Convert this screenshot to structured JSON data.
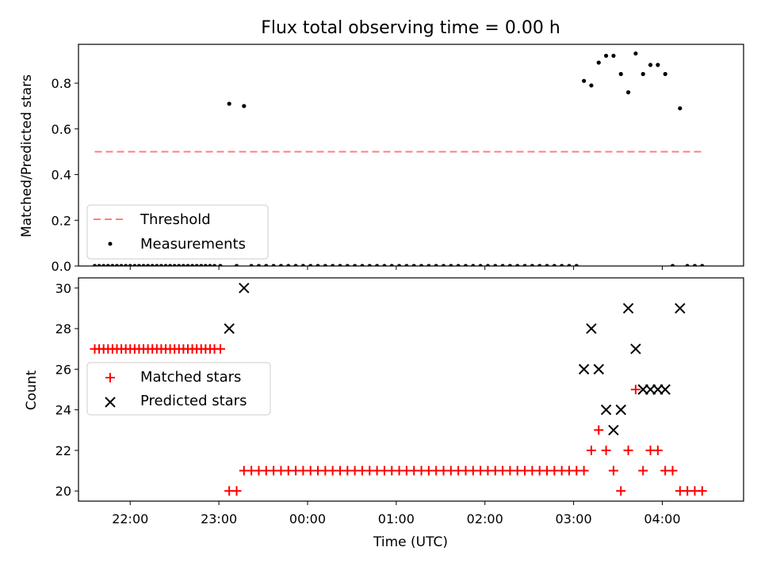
{
  "chart_data": [
    {
      "type": "scatter",
      "title": "Flux total observing time = 0.00 h",
      "ylabel": "Matched/Predicted stars",
      "xlabel": "",
      "xlim": [
        "21:25",
        "04:55"
      ],
      "ylim": [
        0,
        0.97
      ],
      "yticks": [
        0.0,
        0.2,
        0.4,
        0.6,
        0.8
      ],
      "ytick_labels": [
        "0.0",
        "0.2",
        "0.4",
        "0.6",
        "0.8"
      ],
      "xticks": [
        "22:00",
        "23:00",
        "00:00",
        "01:00",
        "02:00",
        "03:00",
        "04:00"
      ],
      "show_xtick_labels": false,
      "grid": false,
      "legend_position": "lower-left",
      "threshold": {
        "name": "Threshold",
        "value": 0.5,
        "x_range": [
          "21:36",
          "04:27"
        ],
        "color": "#ff7f7f",
        "style": "dashed"
      },
      "series": [
        {
          "name": "Measurements",
          "marker": "dot",
          "color": "#000000",
          "points": [
            {
              "x": "21:36",
              "y": 0
            },
            {
              "x": "21:39",
              "y": 0
            },
            {
              "x": "21:42",
              "y": 0
            },
            {
              "x": "21:45",
              "y": 0
            },
            {
              "x": "21:48",
              "y": 0
            },
            {
              "x": "21:51",
              "y": 0
            },
            {
              "x": "21:54",
              "y": 0
            },
            {
              "x": "21:57",
              "y": 0
            },
            {
              "x": "22:00",
              "y": 0
            },
            {
              "x": "22:03",
              "y": 0
            },
            {
              "x": "22:06",
              "y": 0
            },
            {
              "x": "22:09",
              "y": 0
            },
            {
              "x": "22:12",
              "y": 0
            },
            {
              "x": "22:15",
              "y": 0
            },
            {
              "x": "22:18",
              "y": 0
            },
            {
              "x": "22:21",
              "y": 0
            },
            {
              "x": "22:24",
              "y": 0
            },
            {
              "x": "22:27",
              "y": 0
            },
            {
              "x": "22:30",
              "y": 0
            },
            {
              "x": "22:33",
              "y": 0
            },
            {
              "x": "22:36",
              "y": 0
            },
            {
              "x": "22:39",
              "y": 0
            },
            {
              "x": "22:42",
              "y": 0
            },
            {
              "x": "22:45",
              "y": 0
            },
            {
              "x": "22:48",
              "y": 0
            },
            {
              "x": "22:51",
              "y": 0
            },
            {
              "x": "22:54",
              "y": 0
            },
            {
              "x": "22:57",
              "y": 0
            },
            {
              "x": "23:01",
              "y": 0
            },
            {
              "x": "23:07",
              "y": 0.71
            },
            {
              "x": "23:12",
              "y": 0
            },
            {
              "x": "23:17",
              "y": 0.7
            },
            {
              "x": "23:22",
              "y": 0
            },
            {
              "x": "23:27",
              "y": 0
            },
            {
              "x": "23:32",
              "y": 0
            },
            {
              "x": "23:37",
              "y": 0
            },
            {
              "x": "23:42",
              "y": 0
            },
            {
              "x": "23:47",
              "y": 0
            },
            {
              "x": "23:52",
              "y": 0
            },
            {
              "x": "23:57",
              "y": 0
            },
            {
              "x": "00:02",
              "y": 0
            },
            {
              "x": "00:07",
              "y": 0
            },
            {
              "x": "00:12",
              "y": 0
            },
            {
              "x": "00:17",
              "y": 0
            },
            {
              "x": "00:22",
              "y": 0
            },
            {
              "x": "00:27",
              "y": 0
            },
            {
              "x": "00:32",
              "y": 0
            },
            {
              "x": "00:37",
              "y": 0
            },
            {
              "x": "00:42",
              "y": 0
            },
            {
              "x": "00:47",
              "y": 0
            },
            {
              "x": "00:52",
              "y": 0
            },
            {
              "x": "00:57",
              "y": 0
            },
            {
              "x": "01:02",
              "y": 0
            },
            {
              "x": "01:07",
              "y": 0
            },
            {
              "x": "01:12",
              "y": 0
            },
            {
              "x": "01:17",
              "y": 0
            },
            {
              "x": "01:22",
              "y": 0
            },
            {
              "x": "01:27",
              "y": 0
            },
            {
              "x": "01:32",
              "y": 0
            },
            {
              "x": "01:37",
              "y": 0
            },
            {
              "x": "01:42",
              "y": 0
            },
            {
              "x": "01:47",
              "y": 0
            },
            {
              "x": "01:52",
              "y": 0
            },
            {
              "x": "01:57",
              "y": 0
            },
            {
              "x": "02:02",
              "y": 0
            },
            {
              "x": "02:07",
              "y": 0
            },
            {
              "x": "02:12",
              "y": 0
            },
            {
              "x": "02:17",
              "y": 0
            },
            {
              "x": "02:22",
              "y": 0
            },
            {
              "x": "02:27",
              "y": 0
            },
            {
              "x": "02:32",
              "y": 0
            },
            {
              "x": "02:37",
              "y": 0
            },
            {
              "x": "02:42",
              "y": 0
            },
            {
              "x": "02:47",
              "y": 0
            },
            {
              "x": "02:52",
              "y": 0
            },
            {
              "x": "02:57",
              "y": 0
            },
            {
              "x": "03:02",
              "y": 0
            },
            {
              "x": "03:07",
              "y": 0.81
            },
            {
              "x": "03:12",
              "y": 0.79
            },
            {
              "x": "03:17",
              "y": 0.89
            },
            {
              "x": "03:22",
              "y": 0.92
            },
            {
              "x": "03:27",
              "y": 0.92
            },
            {
              "x": "03:32",
              "y": 0.84
            },
            {
              "x": "03:37",
              "y": 0.76
            },
            {
              "x": "03:42",
              "y": 0.93
            },
            {
              "x": "03:47",
              "y": 0.84
            },
            {
              "x": "03:52",
              "y": 0.88
            },
            {
              "x": "03:57",
              "y": 0.88
            },
            {
              "x": "04:02",
              "y": 0.84
            },
            {
              "x": "04:07",
              "y": 0
            },
            {
              "x": "04:12",
              "y": 0.69
            },
            {
              "x": "04:17",
              "y": 0
            },
            {
              "x": "04:22",
              "y": 0
            },
            {
              "x": "04:27",
              "y": 0
            }
          ]
        }
      ]
    },
    {
      "type": "scatter",
      "title": "",
      "ylabel": "Count",
      "xlabel": "Time (UTC)",
      "xlim": [
        "21:25",
        "04:55"
      ],
      "ylim": [
        19.5,
        30.5
      ],
      "yticks": [
        20,
        22,
        24,
        26,
        28,
        30
      ],
      "ytick_labels": [
        "20",
        "22",
        "24",
        "26",
        "28",
        "30"
      ],
      "xticks": [
        "22:00",
        "23:00",
        "00:00",
        "01:00",
        "02:00",
        "03:00",
        "04:00"
      ],
      "xtick_labels": [
        "22:00",
        "23:00",
        "00:00",
        "01:00",
        "02:00",
        "03:00",
        "04:00"
      ],
      "show_xtick_labels": true,
      "grid": false,
      "legend_position": "center-left",
      "series": [
        {
          "name": "Matched stars",
          "marker": "plus",
          "color": "#ff0000",
          "points": [
            {
              "x": "21:36",
              "y": 27
            },
            {
              "x": "21:39",
              "y": 27
            },
            {
              "x": "21:42",
              "y": 27
            },
            {
              "x": "21:45",
              "y": 27
            },
            {
              "x": "21:48",
              "y": 27
            },
            {
              "x": "21:51",
              "y": 27
            },
            {
              "x": "21:54",
              "y": 27
            },
            {
              "x": "21:57",
              "y": 27
            },
            {
              "x": "22:00",
              "y": 27
            },
            {
              "x": "22:03",
              "y": 27
            },
            {
              "x": "22:06",
              "y": 27
            },
            {
              "x": "22:09",
              "y": 27
            },
            {
              "x": "22:12",
              "y": 27
            },
            {
              "x": "22:15",
              "y": 27
            },
            {
              "x": "22:18",
              "y": 27
            },
            {
              "x": "22:21",
              "y": 27
            },
            {
              "x": "22:24",
              "y": 27
            },
            {
              "x": "22:27",
              "y": 27
            },
            {
              "x": "22:30",
              "y": 27
            },
            {
              "x": "22:33",
              "y": 27
            },
            {
              "x": "22:36",
              "y": 27
            },
            {
              "x": "22:39",
              "y": 27
            },
            {
              "x": "22:42",
              "y": 27
            },
            {
              "x": "22:45",
              "y": 27
            },
            {
              "x": "22:48",
              "y": 27
            },
            {
              "x": "22:51",
              "y": 27
            },
            {
              "x": "22:54",
              "y": 27
            },
            {
              "x": "22:57",
              "y": 27
            },
            {
              "x": "23:01",
              "y": 27
            },
            {
              "x": "23:07",
              "y": 20
            },
            {
              "x": "23:12",
              "y": 20
            },
            {
              "x": "23:17",
              "y": 21
            },
            {
              "x": "23:22",
              "y": 21
            },
            {
              "x": "23:27",
              "y": 21
            },
            {
              "x": "23:32",
              "y": 21
            },
            {
              "x": "23:37",
              "y": 21
            },
            {
              "x": "23:42",
              "y": 21
            },
            {
              "x": "23:47",
              "y": 21
            },
            {
              "x": "23:52",
              "y": 21
            },
            {
              "x": "23:57",
              "y": 21
            },
            {
              "x": "00:02",
              "y": 21
            },
            {
              "x": "00:07",
              "y": 21
            },
            {
              "x": "00:12",
              "y": 21
            },
            {
              "x": "00:17",
              "y": 21
            },
            {
              "x": "00:22",
              "y": 21
            },
            {
              "x": "00:27",
              "y": 21
            },
            {
              "x": "00:32",
              "y": 21
            },
            {
              "x": "00:37",
              "y": 21
            },
            {
              "x": "00:42",
              "y": 21
            },
            {
              "x": "00:47",
              "y": 21
            },
            {
              "x": "00:52",
              "y": 21
            },
            {
              "x": "00:57",
              "y": 21
            },
            {
              "x": "01:02",
              "y": 21
            },
            {
              "x": "01:07",
              "y": 21
            },
            {
              "x": "01:12",
              "y": 21
            },
            {
              "x": "01:17",
              "y": 21
            },
            {
              "x": "01:22",
              "y": 21
            },
            {
              "x": "01:27",
              "y": 21
            },
            {
              "x": "01:32",
              "y": 21
            },
            {
              "x": "01:37",
              "y": 21
            },
            {
              "x": "01:42",
              "y": 21
            },
            {
              "x": "01:47",
              "y": 21
            },
            {
              "x": "01:52",
              "y": 21
            },
            {
              "x": "01:57",
              "y": 21
            },
            {
              "x": "02:02",
              "y": 21
            },
            {
              "x": "02:07",
              "y": 21
            },
            {
              "x": "02:12",
              "y": 21
            },
            {
              "x": "02:17",
              "y": 21
            },
            {
              "x": "02:22",
              "y": 21
            },
            {
              "x": "02:27",
              "y": 21
            },
            {
              "x": "02:32",
              "y": 21
            },
            {
              "x": "02:37",
              "y": 21
            },
            {
              "x": "02:42",
              "y": 21
            },
            {
              "x": "02:47",
              "y": 21
            },
            {
              "x": "02:52",
              "y": 21
            },
            {
              "x": "02:57",
              "y": 21
            },
            {
              "x": "03:02",
              "y": 21
            },
            {
              "x": "03:07",
              "y": 21
            },
            {
              "x": "03:12",
              "y": 22
            },
            {
              "x": "03:17",
              "y": 23
            },
            {
              "x": "03:22",
              "y": 22
            },
            {
              "x": "03:27",
              "y": 21
            },
            {
              "x": "03:32",
              "y": 20
            },
            {
              "x": "03:37",
              "y": 22
            },
            {
              "x": "03:42",
              "y": 25
            },
            {
              "x": "03:47",
              "y": 21
            },
            {
              "x": "03:52",
              "y": 22
            },
            {
              "x": "03:57",
              "y": 22
            },
            {
              "x": "04:02",
              "y": 21
            },
            {
              "x": "04:07",
              "y": 21
            },
            {
              "x": "04:12",
              "y": 20
            },
            {
              "x": "04:17",
              "y": 20
            },
            {
              "x": "04:22",
              "y": 20
            },
            {
              "x": "04:27",
              "y": 20
            }
          ]
        },
        {
          "name": "Predicted stars",
          "marker": "x",
          "color": "#000000",
          "points": [
            {
              "x": "23:07",
              "y": 28
            },
            {
              "x": "23:17",
              "y": 30
            },
            {
              "x": "03:07",
              "y": 26
            },
            {
              "x": "03:12",
              "y": 28
            },
            {
              "x": "03:17",
              "y": 26
            },
            {
              "x": "03:22",
              "y": 24
            },
            {
              "x": "03:27",
              "y": 23
            },
            {
              "x": "03:32",
              "y": 24
            },
            {
              "x": "03:37",
              "y": 29
            },
            {
              "x": "03:42",
              "y": 27
            },
            {
              "x": "03:47",
              "y": 25
            },
            {
              "x": "03:52",
              "y": 25
            },
            {
              "x": "03:57",
              "y": 25
            },
            {
              "x": "04:02",
              "y": 25
            },
            {
              "x": "04:12",
              "y": 29
            }
          ]
        }
      ]
    }
  ]
}
